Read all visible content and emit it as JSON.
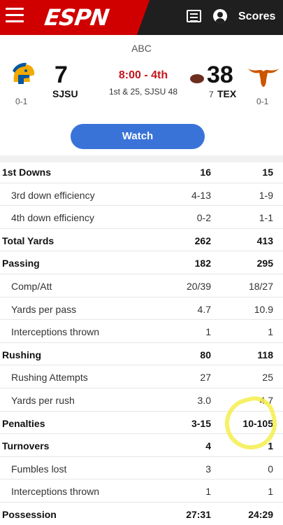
{
  "header": {
    "logo": "ESPN",
    "scores_label": "Scores"
  },
  "game": {
    "network": "ABC",
    "away": {
      "score": "7",
      "abbr": "SJSU",
      "record": "0-1"
    },
    "home": {
      "score": "38",
      "abbr": "TEX",
      "record": "0-1",
      "timeouts": "7"
    },
    "clock": "8:00 - 4th",
    "situation": "1st & 25, SJSU 48"
  },
  "watch_label": "Watch",
  "stats": [
    {
      "label": "1st Downs",
      "away": "16",
      "home": "15",
      "type": "main"
    },
    {
      "label": "3rd down efficiency",
      "away": "4-13",
      "home": "1-9",
      "type": "sub"
    },
    {
      "label": "4th down efficiency",
      "away": "0-2",
      "home": "1-1",
      "type": "sub"
    },
    {
      "label": "Total Yards",
      "away": "262",
      "home": "413",
      "type": "main"
    },
    {
      "label": "Passing",
      "away": "182",
      "home": "295",
      "type": "main"
    },
    {
      "label": "Comp/Att",
      "away": "20/39",
      "home": "18/27",
      "type": "sub"
    },
    {
      "label": "Yards per pass",
      "away": "4.7",
      "home": "10.9",
      "type": "sub"
    },
    {
      "label": "Interceptions thrown",
      "away": "1",
      "home": "1",
      "type": "sub"
    },
    {
      "label": "Rushing",
      "away": "80",
      "home": "118",
      "type": "main"
    },
    {
      "label": "Rushing Attempts",
      "away": "27",
      "home": "25",
      "type": "sub"
    },
    {
      "label": "Yards per rush",
      "away": "3.0",
      "home": "4.7",
      "type": "sub"
    },
    {
      "label": "Penalties",
      "away": "3-15",
      "home": "10-105",
      "type": "main"
    },
    {
      "label": "Turnovers",
      "away": "4",
      "home": "1",
      "type": "main"
    },
    {
      "label": "Fumbles lost",
      "away": "3",
      "home": "0",
      "type": "sub"
    },
    {
      "label": "Interceptions thrown",
      "away": "1",
      "home": "1",
      "type": "sub"
    },
    {
      "label": "Possession",
      "away": "27:31",
      "home": "24:29",
      "type": "main"
    }
  ],
  "icons": {
    "menu": "hamburger-menu-icon",
    "tv": "tv-guide-icon",
    "user": "user-account-icon",
    "football": "football-possession-icon",
    "away_logo": "spartan-helmet-logo",
    "home_logo": "longhorn-logo"
  },
  "colors": {
    "brand_red": "#d00000",
    "header_dark": "#1f1f1f",
    "accent_blue": "#3a73d8",
    "clock_red": "#c4161c",
    "highlight_yellow": "#f4ee4c"
  }
}
